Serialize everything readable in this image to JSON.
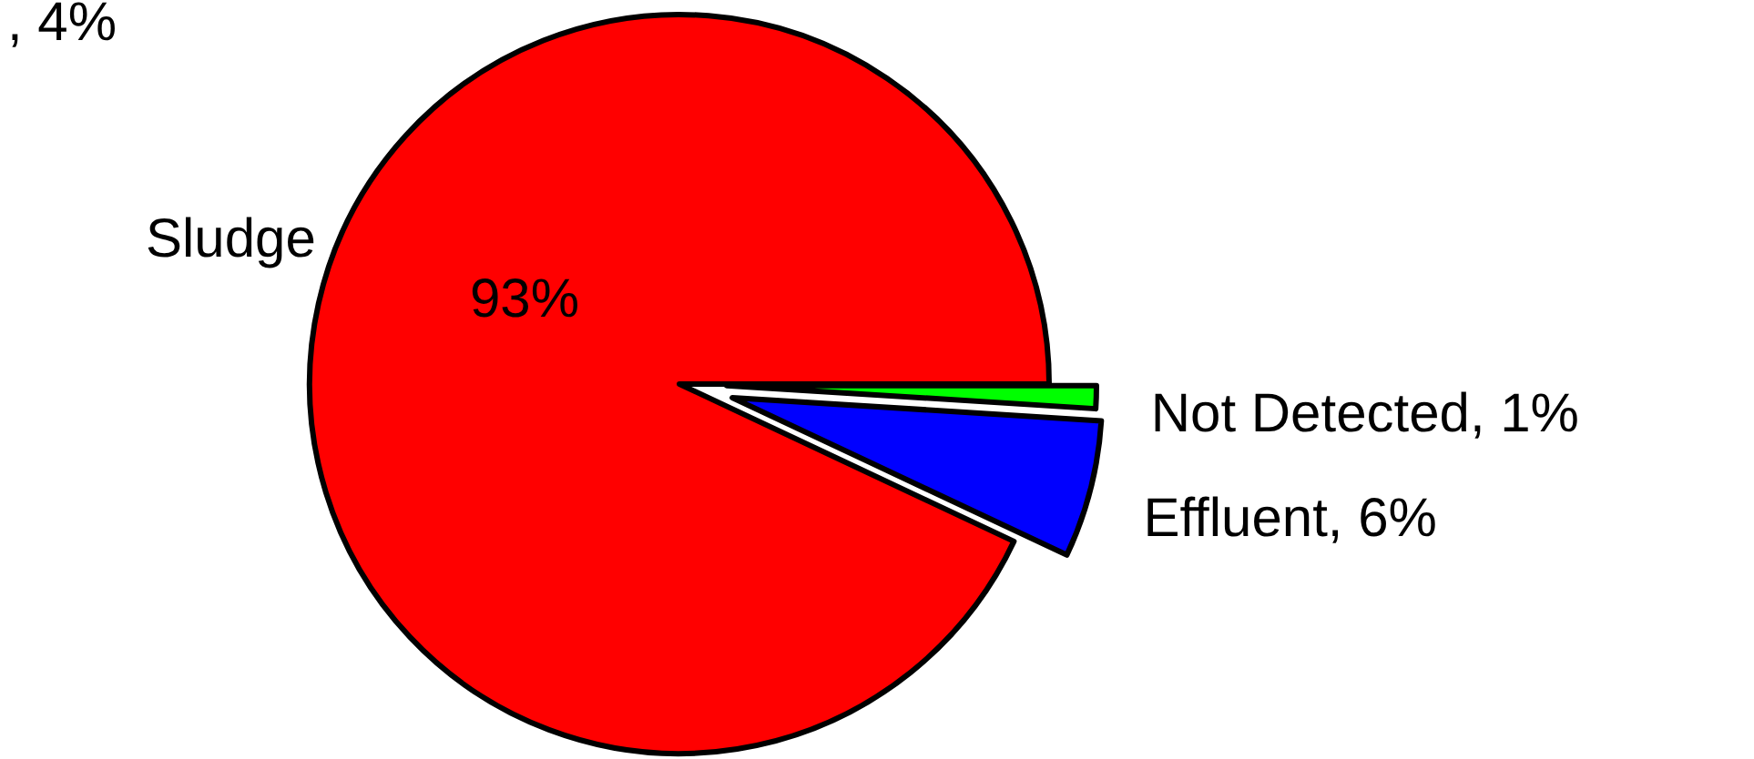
{
  "chart_data": {
    "type": "pie",
    "categories": [
      "Not Detected",
      "Effluent",
      "Sludge"
    ],
    "values": [
      1,
      6,
      93
    ],
    "colors": [
      "#00ff00",
      "#0000ff",
      "#ff0000"
    ],
    "value_labels": [
      "1%",
      "6%",
      "93%"
    ],
    "annotations": [
      ", 4%"
    ]
  }
}
